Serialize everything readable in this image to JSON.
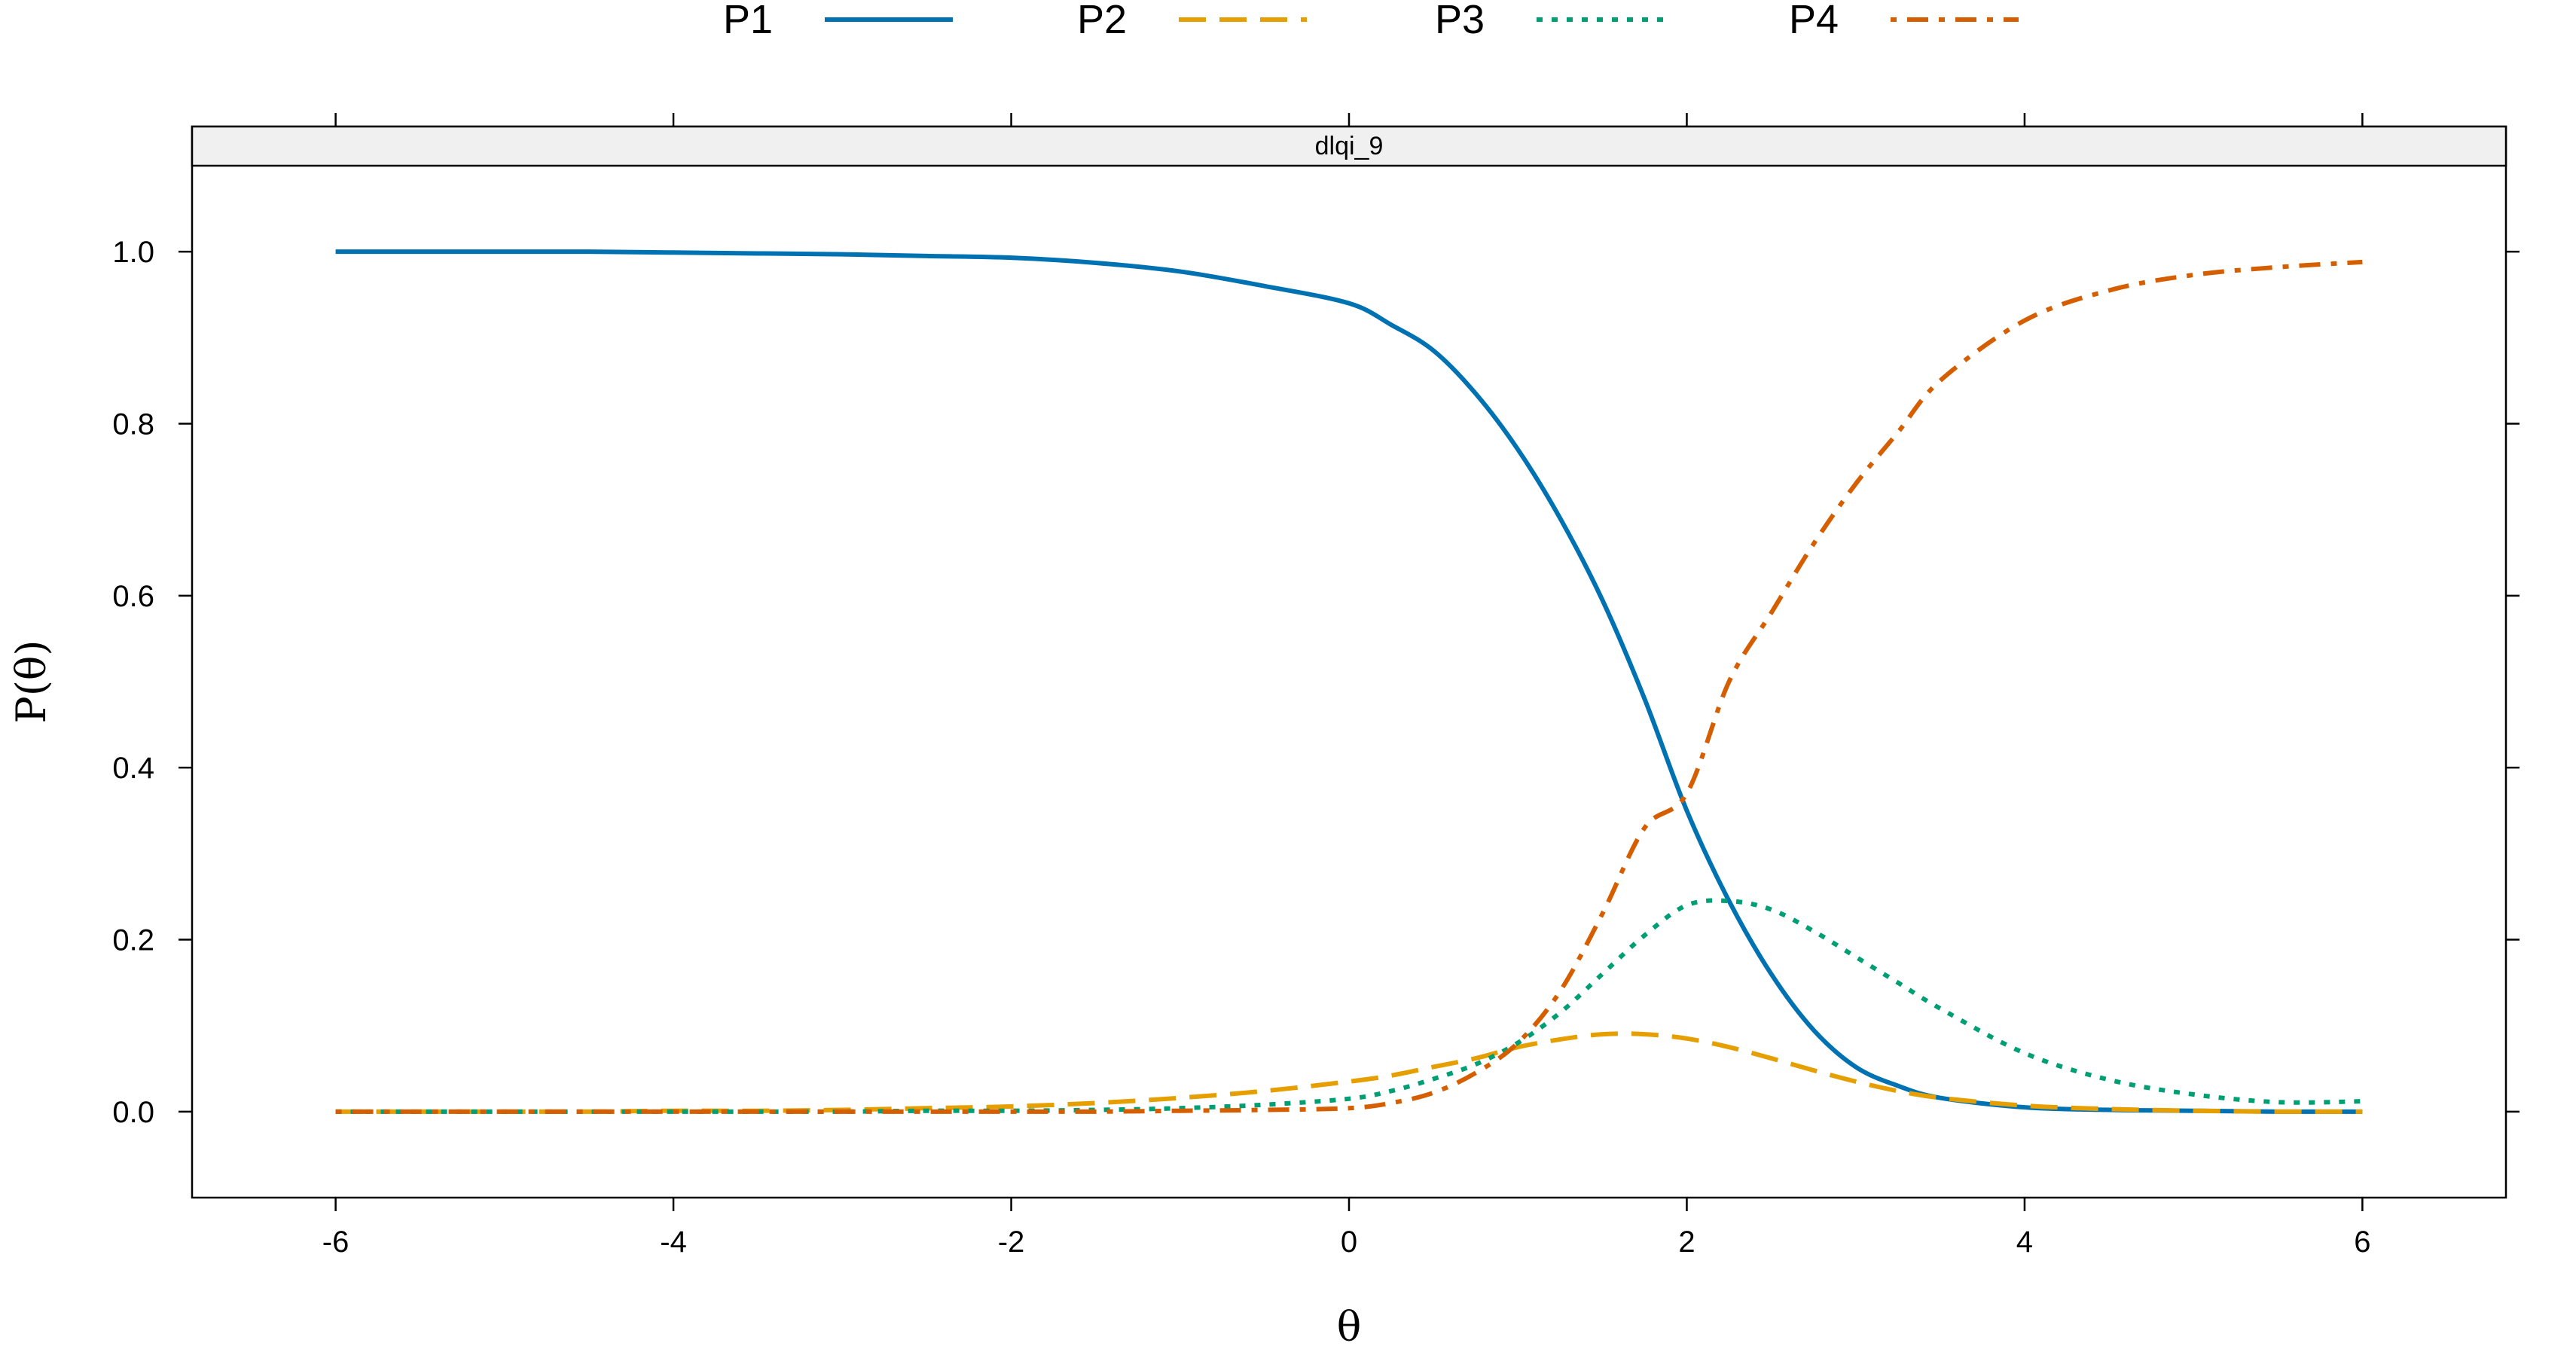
{
  "chart_data": {
    "type": "line",
    "panel_title": "dlqi_9",
    "xlabel": "θ",
    "ylabel": "P(θ)",
    "xlim": [
      -6.85,
      6.85
    ],
    "ylim": [
      -0.1,
      1.1
    ],
    "xticks": [
      -6,
      -4,
      -2,
      0,
      2,
      4,
      6
    ],
    "xtick_labels": [
      "-6",
      "-4",
      "-2",
      "0",
      "2",
      "4",
      "6"
    ],
    "yticks": [
      0.0,
      0.2,
      0.4,
      0.6,
      0.8,
      1.0
    ],
    "ytick_labels": [
      "0.0",
      "0.2",
      "0.4",
      "0.6",
      "0.8",
      "1.0"
    ],
    "legend_position": "top",
    "grid": false,
    "x": [
      -6,
      -5.5,
      -5,
      -4.5,
      -4,
      -3.5,
      -3,
      -2.5,
      -2,
      -1.5,
      -1,
      -0.5,
      0,
      0.25,
      0.5,
      0.75,
      1,
      1.25,
      1.5,
      1.75,
      2,
      2.25,
      2.5,
      2.75,
      3,
      3.25,
      3.5,
      4,
      4.5,
      5,
      5.5,
      6
    ],
    "series": [
      {
        "name": "P1",
        "color": "#0072B2",
        "dash": "solid",
        "values": [
          1.0,
          1.0,
          1.0,
          1.0,
          0.999,
          0.998,
          0.997,
          0.995,
          0.993,
          0.987,
          0.977,
          0.96,
          0.94,
          0.915,
          0.885,
          0.835,
          0.77,
          0.69,
          0.595,
          0.48,
          0.35,
          0.245,
          0.16,
          0.095,
          0.052,
          0.03,
          0.016,
          0.005,
          0.002,
          0.001,
          0.0,
          0.0
        ]
      },
      {
        "name": "P2",
        "color": "#E69F00",
        "dash": "dashed",
        "values": [
          0.0,
          0.0,
          0.0,
          0.0,
          0.001,
          0.001,
          0.002,
          0.004,
          0.006,
          0.01,
          0.016,
          0.024,
          0.035,
          0.042,
          0.052,
          0.062,
          0.075,
          0.084,
          0.09,
          0.09,
          0.085,
          0.075,
          0.062,
          0.048,
          0.035,
          0.024,
          0.016,
          0.007,
          0.003,
          0.001,
          0.0,
          0.0
        ]
      },
      {
        "name": "P3",
        "color": "#009E73",
        "dash": "dotted",
        "values": [
          0.0,
          0.0,
          0.0,
          0.0,
          0.0,
          0.0,
          0.0,
          0.001,
          0.001,
          0.002,
          0.004,
          0.008,
          0.015,
          0.024,
          0.038,
          0.055,
          0.08,
          0.115,
          0.16,
          0.205,
          0.24,
          0.245,
          0.235,
          0.21,
          0.18,
          0.15,
          0.12,
          0.068,
          0.037,
          0.02,
          0.011,
          0.012
        ]
      },
      {
        "name": "P4",
        "color": "#D55E00",
        "dash": "dotdash",
        "values": [
          0.0,
          0.0,
          0.0,
          0.0,
          0.0,
          0.0,
          0.0,
          0.0,
          0.0,
          0.0,
          0.001,
          0.002,
          0.004,
          0.01,
          0.022,
          0.045,
          0.08,
          0.14,
          0.23,
          0.33,
          0.37,
          0.5,
          0.58,
          0.66,
          0.73,
          0.79,
          0.85,
          0.92,
          0.955,
          0.973,
          0.982,
          0.988
        ]
      }
    ]
  }
}
